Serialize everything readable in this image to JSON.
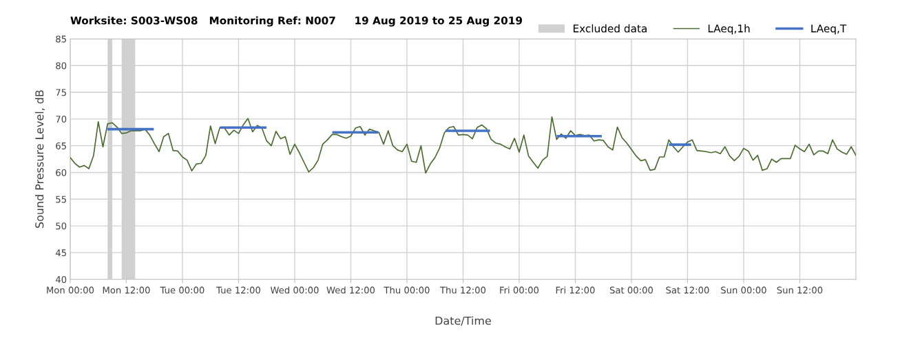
{
  "chart_data": {
    "type": "line",
    "title": "Worksite: S003-WS08   Monitoring Ref: N007     19 Aug 2019 to 25 Aug 2019",
    "xlabel": "Date/Time",
    "ylabel": "Sound Pressure Level, dB",
    "xlim": [
      "2019-08-19T00:00",
      "2019-08-26T00:00"
    ],
    "ylim": [
      40,
      85
    ],
    "xticks": [
      {
        "value": "2019-08-19T00:00",
        "label": "Mon 00:00"
      },
      {
        "value": "2019-08-19T12:00",
        "label": "Mon 12:00"
      },
      {
        "value": "2019-08-20T00:00",
        "label": "Tue 00:00"
      },
      {
        "value": "2019-08-20T12:00",
        "label": "Tue 12:00"
      },
      {
        "value": "2019-08-21T00:00",
        "label": "Wed 00:00"
      },
      {
        "value": "2019-08-21T12:00",
        "label": "Wed 12:00"
      },
      {
        "value": "2019-08-22T00:00",
        "label": "Thu 00:00"
      },
      {
        "value": "2019-08-22T12:00",
        "label": "Thu 12:00"
      },
      {
        "value": "2019-08-23T00:00",
        "label": "Fri 00:00"
      },
      {
        "value": "2019-08-23T12:00",
        "label": "Fri 12:00"
      },
      {
        "value": "2019-08-24T00:00",
        "label": "Sat 00:00"
      },
      {
        "value": "2019-08-24T12:00",
        "label": "Sat 12:00"
      },
      {
        "value": "2019-08-25T00:00",
        "label": "Sun 00:00"
      },
      {
        "value": "2019-08-25T12:00",
        "label": "Sun 12:00"
      }
    ],
    "yticks": [
      40,
      45,
      50,
      55,
      60,
      65,
      70,
      75,
      80,
      85
    ],
    "grid": true,
    "legend": "top right",
    "bands": [
      {
        "axis": "x",
        "from": "2019-08-19T08:00",
        "to": "2019-08-19T09:00",
        "label": "Excluded data",
        "color": "#d0d0d0"
      },
      {
        "axis": "x",
        "from": "2019-08-19T11:00",
        "to": "2019-08-19T13:54",
        "color": "#d0d0d0"
      }
    ],
    "series": [
      {
        "name": "LAeq,1h",
        "color": "#4a6b2f",
        "x": [
          "2019-08-19T00:00",
          "2019-08-19T01:00",
          "2019-08-19T02:00",
          "2019-08-19T03:00",
          "2019-08-19T04:00",
          "2019-08-19T05:00",
          "2019-08-19T06:00",
          "2019-08-19T07:00",
          "2019-08-19T08:00",
          "2019-08-19T09:00",
          "2019-08-19T10:00",
          "2019-08-19T11:00",
          "2019-08-19T12:00",
          "2019-08-19T13:00",
          "2019-08-19T14:00",
          "2019-08-19T15:00",
          "2019-08-19T16:00",
          "2019-08-19T17:00",
          "2019-08-19T18:00",
          "2019-08-19T19:00",
          "2019-08-19T20:00",
          "2019-08-19T21:00",
          "2019-08-19T22:00",
          "2019-08-19T23:00",
          "2019-08-20T00:00",
          "2019-08-20T01:00",
          "2019-08-20T02:00",
          "2019-08-20T03:00",
          "2019-08-20T04:00",
          "2019-08-20T05:00",
          "2019-08-20T06:00",
          "2019-08-20T07:00",
          "2019-08-20T08:00",
          "2019-08-20T09:00",
          "2019-08-20T10:00",
          "2019-08-20T11:00",
          "2019-08-20T12:00",
          "2019-08-20T13:00",
          "2019-08-20T14:00",
          "2019-08-20T15:00",
          "2019-08-20T16:00",
          "2019-08-20T17:00",
          "2019-08-20T18:00",
          "2019-08-20T19:00",
          "2019-08-20T20:00",
          "2019-08-20T21:00",
          "2019-08-20T22:00",
          "2019-08-20T23:00",
          "2019-08-21T00:00",
          "2019-08-21T01:00",
          "2019-08-21T02:00",
          "2019-08-21T03:00",
          "2019-08-21T04:00",
          "2019-08-21T05:00",
          "2019-08-21T06:00",
          "2019-08-21T07:00",
          "2019-08-21T08:00",
          "2019-08-21T09:00",
          "2019-08-21T10:00",
          "2019-08-21T11:00",
          "2019-08-21T12:00",
          "2019-08-21T13:00",
          "2019-08-21T14:00",
          "2019-08-21T15:00",
          "2019-08-21T16:00",
          "2019-08-21T17:00",
          "2019-08-21T18:00",
          "2019-08-21T19:00",
          "2019-08-21T20:00",
          "2019-08-21T21:00",
          "2019-08-21T22:00",
          "2019-08-21T23:00",
          "2019-08-22T00:00",
          "2019-08-22T01:00",
          "2019-08-22T02:00",
          "2019-08-22T03:00",
          "2019-08-22T04:00",
          "2019-08-22T05:00",
          "2019-08-22T06:00",
          "2019-08-22T07:00",
          "2019-08-22T08:00",
          "2019-08-22T09:00",
          "2019-08-22T10:00",
          "2019-08-22T11:00",
          "2019-08-22T12:00",
          "2019-08-22T13:00",
          "2019-08-22T14:00",
          "2019-08-22T15:00",
          "2019-08-22T16:00",
          "2019-08-22T17:00",
          "2019-08-22T18:00",
          "2019-08-22T19:00",
          "2019-08-22T20:00",
          "2019-08-22T21:00",
          "2019-08-22T22:00",
          "2019-08-22T23:00",
          "2019-08-23T00:00",
          "2019-08-23T01:00",
          "2019-08-23T02:00",
          "2019-08-23T03:00",
          "2019-08-23T04:00",
          "2019-08-23T05:00",
          "2019-08-23T06:00",
          "2019-08-23T07:00",
          "2019-08-23T08:00",
          "2019-08-23T09:00",
          "2019-08-23T10:00",
          "2019-08-23T11:00",
          "2019-08-23T12:00",
          "2019-08-23T13:00",
          "2019-08-23T14:00",
          "2019-08-23T15:00",
          "2019-08-23T16:00",
          "2019-08-23T17:00",
          "2019-08-23T18:00",
          "2019-08-23T19:00",
          "2019-08-23T20:00",
          "2019-08-23T21:00",
          "2019-08-23T22:00",
          "2019-08-23T23:00",
          "2019-08-24T00:00",
          "2019-08-24T01:00",
          "2019-08-24T02:00",
          "2019-08-24T03:00",
          "2019-08-24T04:00",
          "2019-08-24T05:00",
          "2019-08-24T06:00",
          "2019-08-24T07:00",
          "2019-08-24T08:00",
          "2019-08-24T09:00",
          "2019-08-24T10:00",
          "2019-08-24T11:00",
          "2019-08-24T12:00",
          "2019-08-24T13:00",
          "2019-08-24T14:00",
          "2019-08-24T15:00",
          "2019-08-24T16:00",
          "2019-08-24T17:00",
          "2019-08-24T18:00",
          "2019-08-24T19:00",
          "2019-08-24T20:00",
          "2019-08-24T21:00",
          "2019-08-24T22:00",
          "2019-08-24T23:00",
          "2019-08-25T00:00",
          "2019-08-25T01:00",
          "2019-08-25T02:00",
          "2019-08-25T03:00",
          "2019-08-25T04:00",
          "2019-08-25T05:00",
          "2019-08-25T06:00",
          "2019-08-25T07:00",
          "2019-08-25T08:00",
          "2019-08-25T09:00",
          "2019-08-25T10:00",
          "2019-08-25T11:00",
          "2019-08-25T12:00",
          "2019-08-25T13:00",
          "2019-08-25T14:00",
          "2019-08-25T15:00",
          "2019-08-25T16:00",
          "2019-08-25T17:00",
          "2019-08-25T18:00",
          "2019-08-25T19:00",
          "2019-08-25T20:00",
          "2019-08-25T21:00",
          "2019-08-25T22:00",
          "2019-08-25T23:00",
          "2019-08-26T00:00"
        ],
        "values": [
          62.8,
          61.7,
          61.0,
          61.3,
          60.7,
          63.2,
          69.5,
          64.8,
          69.1,
          69.3,
          68.5,
          67.3,
          67.4,
          67.8,
          67.8,
          67.8,
          68.1,
          67.0,
          65.4,
          63.9,
          66.7,
          67.3,
          64.1,
          64.0,
          62.9,
          62.3,
          60.3,
          61.6,
          61.7,
          63.2,
          68.7,
          65.4,
          68.4,
          68.3,
          67.0,
          67.9,
          67.3,
          68.9,
          70.1,
          67.6,
          68.8,
          68.3,
          65.9,
          65.0,
          67.7,
          66.3,
          66.7,
          63.4,
          65.3,
          63.7,
          61.9,
          60.1,
          60.9,
          62.3,
          65.3,
          66.1,
          67.1,
          67.1,
          66.7,
          66.4,
          66.8,
          68.3,
          68.6,
          67.0,
          68.1,
          67.8,
          67.5,
          65.3,
          67.8,
          65.0,
          64.2,
          63.9,
          65.3,
          62.1,
          61.9,
          65.0,
          59.9,
          61.6,
          62.8,
          64.6,
          67.4,
          68.4,
          68.6,
          67.0,
          67.1,
          67.0,
          66.3,
          68.4,
          68.9,
          68.2,
          66.2,
          65.5,
          65.3,
          64.8,
          64.4,
          66.4,
          63.8,
          67.0,
          63.1,
          61.9,
          60.8,
          62.3,
          63.0,
          70.4,
          66.2,
          67.2,
          66.4,
          67.8,
          66.9,
          67.1,
          66.9,
          67.0,
          65.9,
          66.1,
          66.0,
          64.8,
          64.2,
          68.5,
          66.5,
          65.5,
          64.3,
          63.1,
          62.2,
          62.4,
          60.4,
          60.6,
          62.9,
          62.9,
          66.1,
          64.8,
          63.8,
          64.8,
          65.7,
          66.1,
          64.1,
          64.0,
          63.9,
          63.7,
          63.9,
          63.5,
          64.8,
          63.1,
          62.2,
          63.0,
          64.5,
          64.0,
          62.3,
          63.2,
          60.4,
          60.7,
          62.5,
          61.9,
          62.6,
          62.6,
          62.6,
          65.1,
          64.4,
          63.9,
          65.3,
          63.3,
          64.0,
          64.0,
          63.5,
          66.1,
          64.4,
          63.8,
          63.4,
          64.8,
          63.2
        ]
      },
      {
        "name": "LAeq,T",
        "color": "#4472c4",
        "x": [
          "2019-08-19T08:12",
          "2019-08-19T17:36",
          "2019-08-20T01:00",
          "2019-08-20T08:18",
          "2019-08-20T17:42",
          "2019-08-21T02:00",
          "2019-08-21T08:18",
          "2019-08-21T17:36",
          "2019-08-22T01:00",
          "2019-08-22T08:30",
          "2019-08-22T17:30",
          "2019-08-23T01:00",
          "2019-08-23T08:18",
          "2019-08-23T17:24",
          "2019-08-24T01:00",
          "2019-08-24T08:18",
          "2019-08-24T12:30"
        ],
        "values": [
          68.1,
          68.1,
          null,
          68.4,
          68.4,
          null,
          67.5,
          67.5,
          null,
          67.8,
          67.8,
          null,
          66.8,
          66.8,
          null,
          65.2,
          65.2
        ]
      }
    ]
  }
}
